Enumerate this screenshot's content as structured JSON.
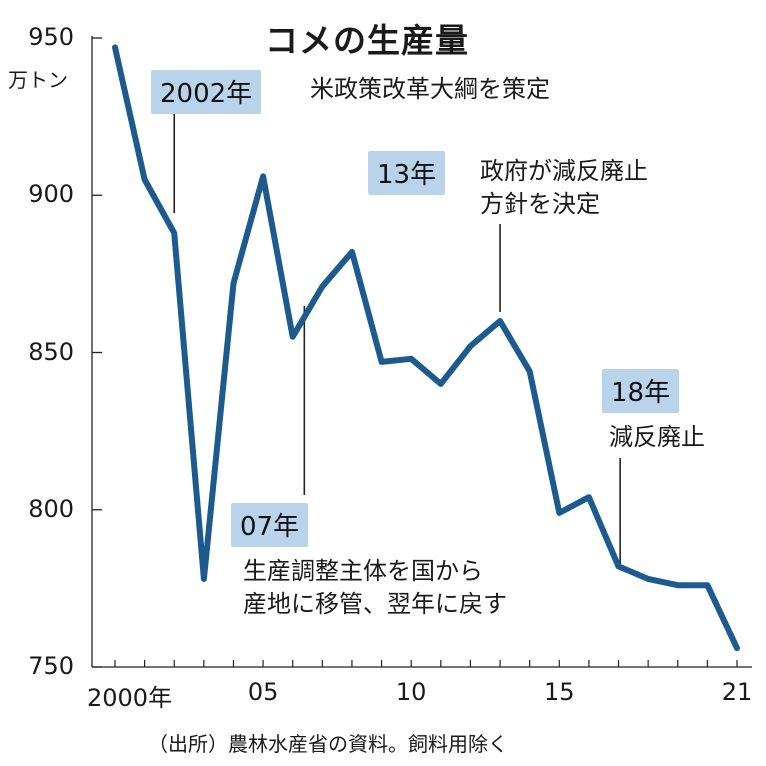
{
  "chart_data": {
    "type": "line",
    "title": "コメの生産量",
    "ylabel": "万トン",
    "ylim": [
      750,
      950
    ],
    "yticks": [
      "950",
      "900",
      "850",
      "800",
      "750"
    ],
    "xticks": [
      "2000年",
      "05",
      "10",
      "15",
      "21"
    ],
    "x": [
      2000,
      2001,
      2002,
      2003,
      2004,
      2005,
      2006,
      2007,
      2008,
      2009,
      2010,
      2011,
      2012,
      2013,
      2014,
      2015,
      2016,
      2017,
      2018,
      2019,
      2020,
      2021
    ],
    "values": [
      947,
      905,
      888,
      778,
      872,
      906,
      855,
      871,
      882,
      847,
      848,
      840,
      852,
      860,
      844,
      799,
      804,
      782,
      778,
      776,
      776,
      756
    ],
    "line_color": "#1d5a8e",
    "annotations": [
      {
        "badge": "2002年",
        "text": [
          "米政策改革大綱を策定"
        ],
        "x": 2002
      },
      {
        "badge": "13年",
        "text": [
          "政府が減反廃止",
          "方針を決定"
        ],
        "x": 2013
      },
      {
        "badge": "18年",
        "text": [
          "減反廃止"
        ],
        "x": 2018
      },
      {
        "badge": "07年",
        "text": [
          "生産調整主体を国から",
          "産地に移管、翌年に戻す"
        ],
        "x": 2007
      }
    ],
    "source": "（出所）農林水産省の資料。飼料用除く"
  }
}
